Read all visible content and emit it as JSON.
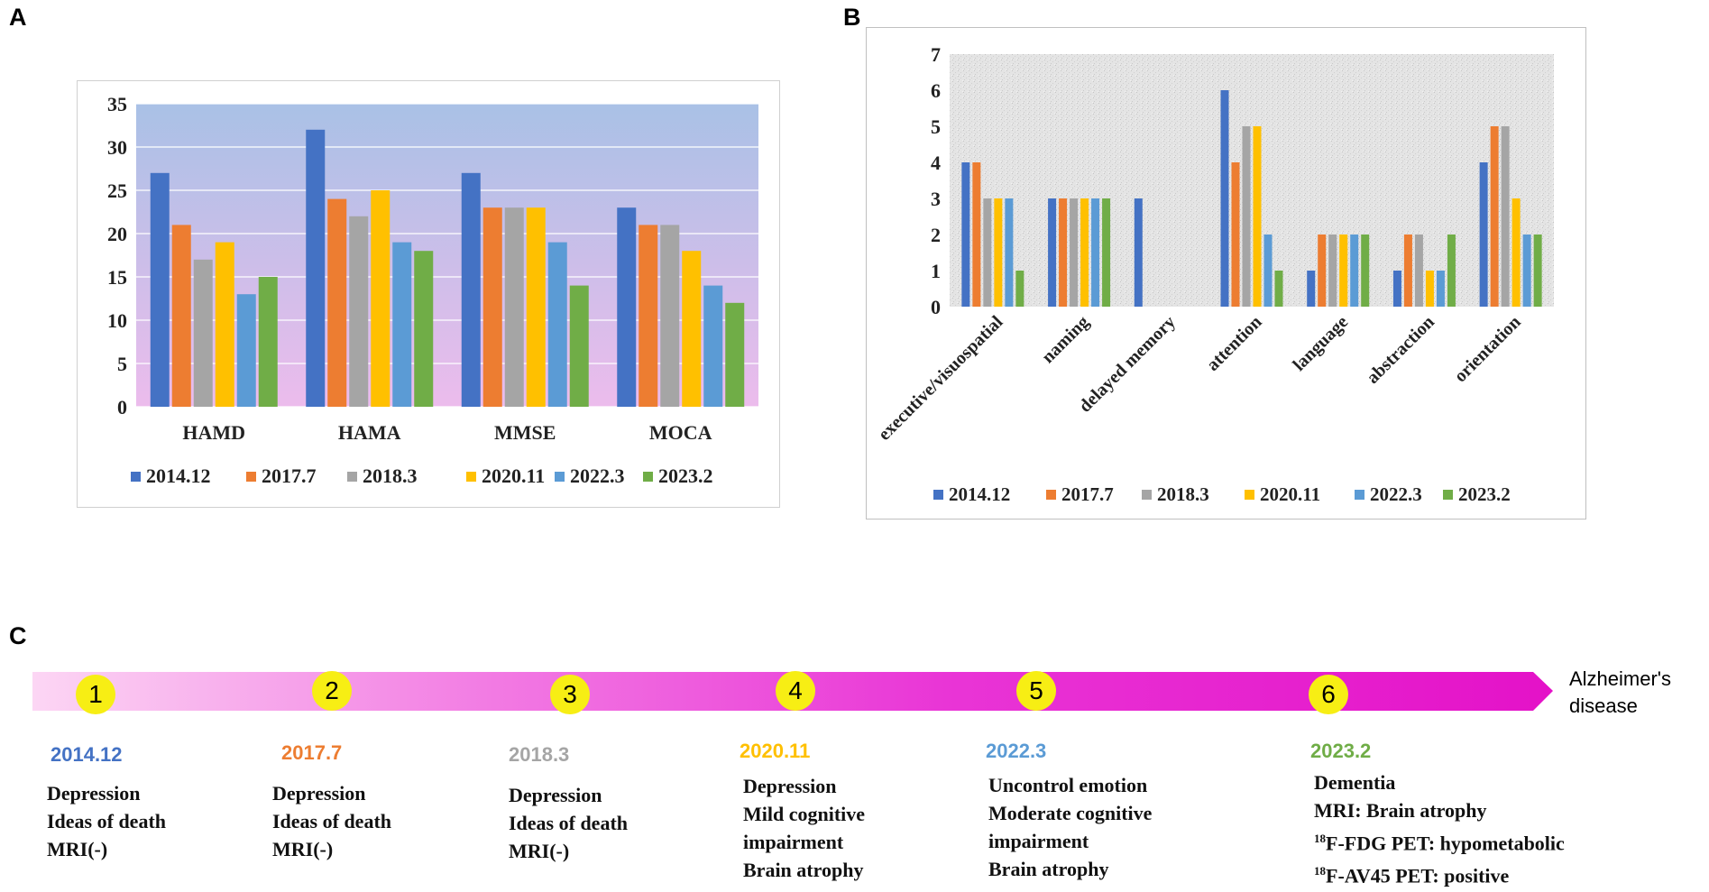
{
  "panels": {
    "a": "A",
    "b": "B",
    "c": "C"
  },
  "series_colors": {
    "2014.12": "#4472c4",
    "2017.7": "#ed7d31",
    "2018.3": "#a5a5a5",
    "2020.11": "#ffc000",
    "2022.3": "#5b9bd5",
    "2023.2": "#70ad47"
  },
  "chart_data": [
    {
      "type": "bar",
      "panel": "A",
      "categories": [
        "HAMD",
        "HAMA",
        "MMSE",
        "MOCA"
      ],
      "series": [
        {
          "name": "2014.12",
          "values": [
            27,
            32,
            27,
            23
          ]
        },
        {
          "name": "2017.7",
          "values": [
            21,
            24,
            23,
            21
          ]
        },
        {
          "name": "2018.3",
          "values": [
            17,
            22,
            23,
            21
          ]
        },
        {
          "name": "2020.11",
          "values": [
            19,
            25,
            23,
            18
          ]
        },
        {
          "name": "2022.3",
          "values": [
            13,
            19,
            19,
            14
          ]
        },
        {
          "name": "2023.2",
          "values": [
            15,
            18,
            14,
            12
          ]
        }
      ],
      "yticks": [
        0,
        5,
        10,
        15,
        20,
        25,
        30,
        35
      ],
      "ylim": [
        0,
        35
      ],
      "grid": true,
      "legend": "bottom"
    },
    {
      "type": "bar",
      "panel": "B",
      "categories": [
        "executive/visuospatial",
        "naming",
        "delayed memory",
        "attention",
        "language",
        "abstraction",
        "orientation"
      ],
      "series": [
        {
          "name": "2014.12",
          "values": [
            4,
            3,
            3,
            6,
            1,
            1,
            4
          ]
        },
        {
          "name": "2017.7",
          "values": [
            4,
            3,
            0,
            4,
            2,
            2,
            5
          ]
        },
        {
          "name": "2018.3",
          "values": [
            3,
            3,
            0,
            5,
            2,
            2,
            5
          ]
        },
        {
          "name": "2020.11",
          "values": [
            3,
            3,
            0,
            5,
            2,
            1,
            3
          ]
        },
        {
          "name": "2022.3",
          "values": [
            3,
            3,
            0,
            2,
            2,
            1,
            2
          ]
        },
        {
          "name": "2023.2",
          "values": [
            1,
            3,
            0,
            1,
            2,
            2,
            2
          ]
        }
      ],
      "yticks": [
        0,
        1,
        2,
        3,
        4,
        5,
        6,
        7
      ],
      "ylim": [
        0,
        7
      ],
      "grid": false,
      "legend": "bottom"
    }
  ],
  "timeline": {
    "end_label_line1": "Alzheimer's",
    "end_label_line2": "disease",
    "events": [
      {
        "number": "1",
        "date": "2014.12",
        "color": "#4472c4",
        "lines": [
          "Depression",
          "Ideas of death",
          "MRI(-)"
        ]
      },
      {
        "number": "2",
        "date": "2017.7",
        "color": "#ed7d31",
        "lines": [
          "Depression",
          "Ideas of death",
          "MRI(-)"
        ]
      },
      {
        "number": "3",
        "date": "2018.3",
        "color": "#a5a5a5",
        "lines": [
          "Depression",
          "Ideas of death",
          "MRI(-)"
        ]
      },
      {
        "number": "4",
        "date": "2020.11",
        "color": "#ffc000",
        "lines": [
          "Depression",
          "Mild cognitive",
          "impairment",
          "Brain atrophy"
        ]
      },
      {
        "number": "5",
        "date": "2022.3",
        "color": "#5b9bd5",
        "lines": [
          "Uncontrol emotion",
          "Moderate cognitive",
          "impairment",
          "Brain atrophy"
        ]
      },
      {
        "number": "6",
        "date": "2023.2",
        "color": "#70ad47",
        "lines": [
          "Dementia",
          "MRI: Brain atrophy"
        ]
      }
    ],
    "pet_lines": [
      {
        "sup": "18",
        "text": "F-FDG PET: hypometabolic"
      },
      {
        "sup": "18",
        "text": "F-AV45 PET: positive"
      }
    ]
  }
}
